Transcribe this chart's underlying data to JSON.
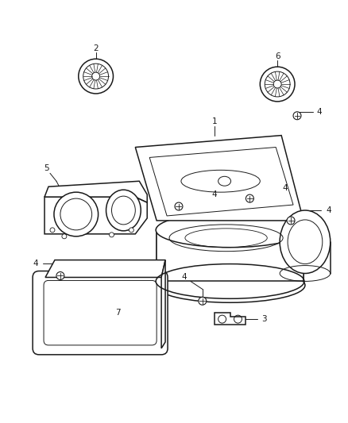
{
  "bg_color": "#ffffff",
  "line_color": "#1a1a1a",
  "label_color": "#1a1a1a",
  "fig_width": 4.38,
  "fig_height": 5.33,
  "dpi": 100
}
